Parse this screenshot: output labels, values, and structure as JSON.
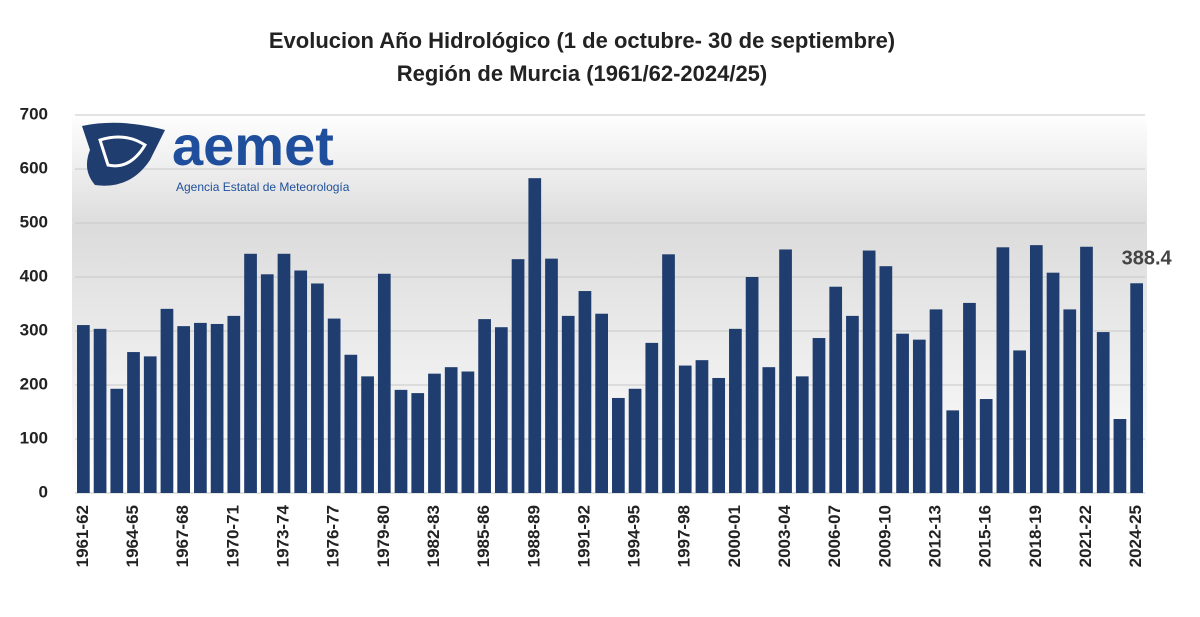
{
  "chart_data": {
    "type": "bar",
    "title": "Evolucion Año Hidrológico (1 de octubre- 30 de septiembre)",
    "subtitle": "Región de Murcia (1961/62-2024/25)",
    "logo": {
      "text": "aemet",
      "subtitle": "Agencia Estatal de Meteorología"
    },
    "categories": [
      "1961-62",
      null,
      null,
      "1964-65",
      null,
      null,
      "1967-68",
      null,
      null,
      "1970-71",
      null,
      null,
      "1973-74",
      null,
      null,
      "1976-77",
      null,
      null,
      "1979-80",
      null,
      null,
      "1982-83",
      null,
      null,
      "1985-86",
      null,
      null,
      "1988-89",
      null,
      null,
      "1991-92",
      null,
      null,
      "1994-95",
      null,
      null,
      "1997-98",
      null,
      null,
      "2000-01",
      null,
      null,
      "2003-04",
      null,
      null,
      "2006-07",
      null,
      null,
      "2009-10",
      null,
      null,
      "2012-13",
      null,
      null,
      "2015-16",
      null,
      null,
      "2018-19",
      null,
      null,
      "2021-22",
      null,
      null,
      "2024-25"
    ],
    "values": [
      311,
      304,
      193,
      261,
      253,
      341,
      309,
      315,
      313,
      328,
      443,
      405,
      443,
      412,
      388,
      323,
      256,
      216,
      406,
      191,
      185,
      221,
      233,
      225,
      322,
      307,
      433,
      583,
      434,
      328,
      374,
      332,
      176,
      193,
      278,
      442,
      236,
      246,
      213,
      304,
      400,
      233,
      451,
      216,
      287,
      382,
      328,
      449,
      420,
      295,
      284,
      340,
      153,
      352,
      174,
      455,
      264,
      459,
      408,
      340,
      456,
      298,
      137,
      388.4
    ],
    "color": "#1f3d6e",
    "ylim": [
      0,
      700
    ],
    "yticks": [
      0,
      100,
      200,
      300,
      400,
      500,
      600,
      700
    ],
    "grid": true
  }
}
